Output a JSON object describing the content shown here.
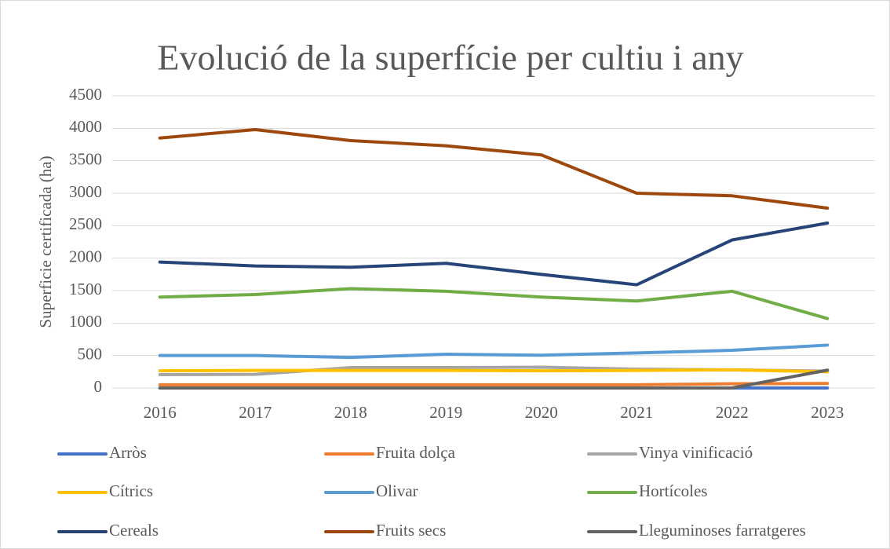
{
  "chart_data": {
    "type": "line",
    "title": "Evolució de la superfície per cultiu i any",
    "y_label": "Superficie certificada (ha)",
    "categories": [
      "2016",
      "2017",
      "2018",
      "2019",
      "2020",
      "2021",
      "2022",
      "2023"
    ],
    "ylim": [
      0,
      4500
    ],
    "yticks": [
      0,
      500,
      1000,
      1500,
      2000,
      2500,
      3000,
      3500,
      4000,
      4500
    ],
    "grid": true,
    "legend": "bottom",
    "series": [
      {
        "name": "Arròs",
        "color": "#4472c4",
        "values": [
          0,
          0,
          0,
          0,
          0,
          0,
          0,
          0
        ]
      },
      {
        "name": "Fruita dolça",
        "color": "#ed7d31",
        "values": [
          50,
          50,
          50,
          50,
          50,
          50,
          65,
          70
        ]
      },
      {
        "name": "Vinya vinificació",
        "color": "#a5a5a5",
        "values": [
          205,
          210,
          315,
          315,
          320,
          290,
          280,
          260
        ]
      },
      {
        "name": "Cítrics",
        "color": "#ffc000",
        "values": [
          265,
          270,
          270,
          270,
          265,
          270,
          280,
          250
        ]
      },
      {
        "name": "Olivar",
        "color": "#5b9bd5",
        "values": [
          500,
          500,
          470,
          520,
          505,
          540,
          580,
          660
        ]
      },
      {
        "name": "Hortícoles",
        "color": "#70ad47",
        "values": [
          1400,
          1440,
          1530,
          1490,
          1400,
          1340,
          1490,
          1070
        ]
      },
      {
        "name": "Cereals",
        "color": "#264478",
        "values": [
          1940,
          1880,
          1860,
          1920,
          1750,
          1590,
          2280,
          2540
        ]
      },
      {
        "name": "Fruits secs",
        "color": "#9e480e",
        "values": [
          3850,
          3980,
          3810,
          3730,
          3590,
          3000,
          2960,
          2770
        ]
      },
      {
        "name": "Lleguminoses farratgeres",
        "color": "#636363",
        "values": [
          0,
          0,
          0,
          0,
          0,
          0,
          0,
          275
        ]
      }
    ]
  }
}
